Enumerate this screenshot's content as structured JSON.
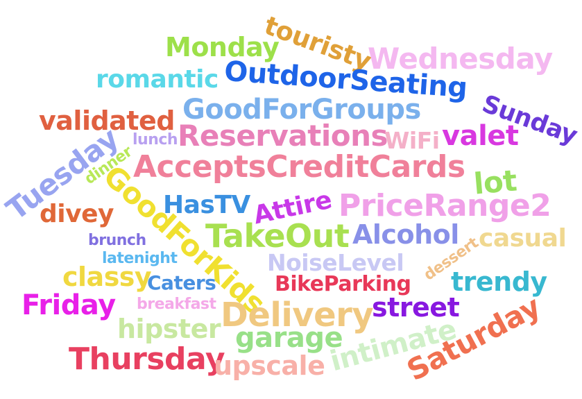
{
  "words": {
    "touristy": {
      "text": "touristy",
      "color": "#e0a038"
    },
    "monday": {
      "text": "Monday",
      "color": "#9de04a"
    },
    "wednesday": {
      "text": "Wednesday",
      "color": "#f4b8f0"
    },
    "romantic": {
      "text": "romantic",
      "color": "#5ad8e8"
    },
    "outdoorseating": {
      "text": "OutdoorSeating",
      "color": "#1e64e8"
    },
    "goodforgroups": {
      "text": "GoodForGroups",
      "color": "#7ab0ec"
    },
    "sunday": {
      "text": "Sunday",
      "color": "#6a3ad8"
    },
    "validated": {
      "text": "validated",
      "color": "#e06040"
    },
    "lunch": {
      "text": "lunch",
      "color": "#b8a0f0"
    },
    "reservations": {
      "text": "Reservations",
      "color": "#e880b8"
    },
    "wifi": {
      "text": "WiFi",
      "color": "#f4b0c8"
    },
    "valet": {
      "text": "valet",
      "color": "#d838e0"
    },
    "tuesday": {
      "text": "Tuesday",
      "color": "#98a4f0"
    },
    "dinner": {
      "text": "dinner",
      "color": "#b8e858"
    },
    "acceptscreditcards": {
      "text": "AcceptsCreditCards",
      "color": "#f0809a"
    },
    "lot": {
      "text": "lot",
      "color": "#98e060"
    },
    "goodforkids": {
      "text": "GoodForKids",
      "color": "#f0e030"
    },
    "hastv": {
      "text": "HasTV",
      "color": "#3a90e0"
    },
    "attire": {
      "text": "Attire",
      "color": "#c838e8"
    },
    "pricerange2": {
      "text": "PriceRange2",
      "color": "#f0a0e8"
    },
    "divey": {
      "text": "divey",
      "color": "#e06838"
    },
    "takeout": {
      "text": "TakeOut",
      "color": "#a8e050"
    },
    "alcohol": {
      "text": "Alcohol",
      "color": "#8890e8"
    },
    "brunch": {
      "text": "brunch",
      "color": "#8070e0"
    },
    "casual": {
      "text": "casual",
      "color": "#f0d890"
    },
    "latenight": {
      "text": "latenight",
      "color": "#5ab8f0"
    },
    "noiselevel": {
      "text": "NoiseLevel",
      "color": "#c8c8f4"
    },
    "dessert": {
      "text": "dessert",
      "color": "#f0c088"
    },
    "classy": {
      "text": "classy",
      "color": "#f0d840"
    },
    "caters": {
      "text": "Caters",
      "color": "#4890e0"
    },
    "bikeparking": {
      "text": "BikeParking",
      "color": "#e83858"
    },
    "trendy": {
      "text": "trendy",
      "color": "#38b8d0"
    },
    "friday": {
      "text": "Friday",
      "color": "#e820e8"
    },
    "breakfast": {
      "text": "breakfast",
      "color": "#f4a8e8"
    },
    "delivery": {
      "text": "Delivery",
      "color": "#f0c880"
    },
    "street": {
      "text": "street",
      "color": "#8818e0"
    },
    "hipster": {
      "text": "hipster",
      "color": "#c8e8a0"
    },
    "garage": {
      "text": "garage",
      "color": "#98e088"
    },
    "intimate": {
      "text": "intimate",
      "color": "#d0f0c8"
    },
    "saturday": {
      "text": "Saturday",
      "color": "#f07050"
    },
    "thursday": {
      "text": "Thursday",
      "color": "#e84060"
    },
    "upscale": {
      "text": "upscale",
      "color": "#f8b0a8"
    }
  }
}
